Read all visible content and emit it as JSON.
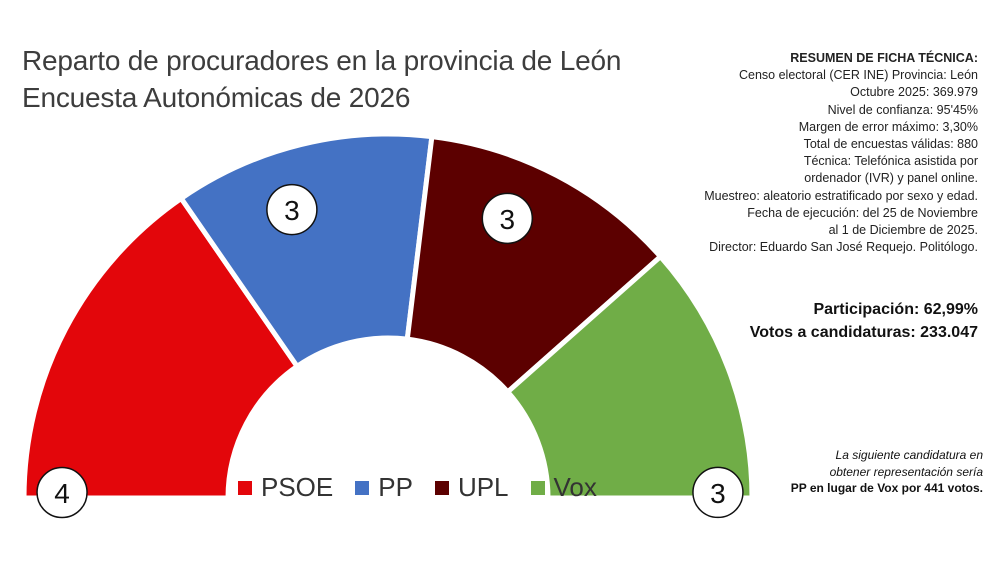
{
  "title": {
    "line1": "Reparto de procuradores en la provincia de León",
    "line2": "Encuesta Autonómicas de 2026"
  },
  "ficha_tecnica": {
    "heading": "RESUMEN DE FICHA TÉCNICA:",
    "lines": [
      "Censo electoral (CER INE) Provincia: León",
      "Octubre 2025: 369.979",
      "Nivel de confianza: 95'45%",
      "Margen de error máximo: 3,30%",
      "Total de encuestas válidas: 880",
      "Técnica: Telefónica asistida por",
      "ordenador (IVR) y panel online.",
      "Muestreo: aleatorio estratificado por sexo y edad.",
      "Fecha de ejecución: del 25 de Noviembre",
      "al 1 de Diciembre de 2025.",
      "Director: Eduardo San José Requejo. Politólogo."
    ]
  },
  "totals": {
    "participacion": "Participación: 62,99%",
    "votos": "Votos a candidaturas: 233.047"
  },
  "note": {
    "line1": "La siguiente candidatura en",
    "line2": "obtener representación sería",
    "line3": "PP en lugar de Vox por 441 votos."
  },
  "chart_data": {
    "type": "pie",
    "subtype": "parliament-semicircle",
    "title": "Reparto de procuradores en la provincia de León",
    "subtitle": "Encuesta Autonómicas de 2026",
    "total_seats": 13,
    "categories": [
      "PSOE",
      "PP",
      "UPL",
      "Vox"
    ],
    "values": [
      4,
      3,
      3,
      3
    ],
    "labels": [
      "4",
      "3",
      "3",
      "3"
    ],
    "colors": [
      "#e3060b",
      "#4472c4",
      "#5c0000",
      "#70ad47"
    ],
    "legend": {
      "placement": "bottom-center",
      "entries": [
        "PSOE",
        "PP",
        "UPL",
        "Vox"
      ]
    }
  }
}
